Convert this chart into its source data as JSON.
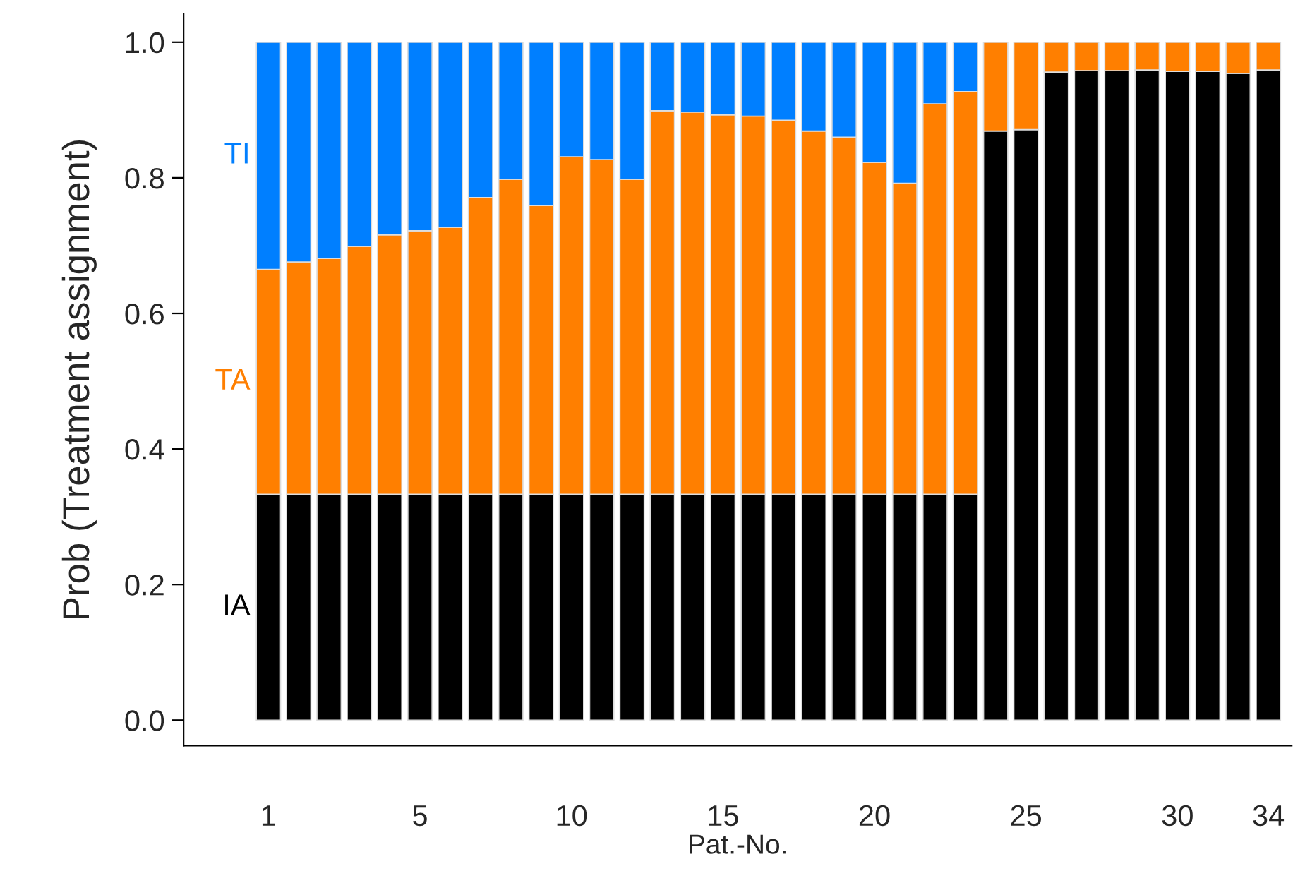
{
  "chart_data": {
    "type": "bar",
    "stacked": true,
    "xlabel": "Pat.-No.",
    "ylabel": "Prob (Treatment assignment)",
    "categories": [
      "1",
      null,
      null,
      null,
      null,
      "5",
      null,
      null,
      null,
      null,
      "10",
      null,
      null,
      null,
      null,
      "15",
      null,
      null,
      null,
      null,
      "20",
      null,
      null,
      null,
      null,
      "25",
      null,
      null,
      null,
      null,
      "30",
      null,
      null,
      "34"
    ],
    "series": [
      {
        "name": "IA",
        "color": "#000000",
        "values": [
          0.333,
          0.333,
          0.333,
          0.333,
          0.333,
          0.333,
          0.333,
          0.333,
          0.333,
          0.333,
          0.333,
          0.333,
          0.333,
          0.333,
          0.333,
          0.333,
          0.333,
          0.333,
          0.333,
          0.333,
          0.333,
          0.333,
          0.333,
          0.333,
          0.869,
          0.871,
          0.956,
          0.958,
          0.958,
          0.959,
          0.957,
          0.957,
          0.954,
          0.959
        ]
      },
      {
        "name": "TA",
        "color": "#ff7f00",
        "values": [
          0.332,
          0.343,
          0.348,
          0.366,
          0.383,
          0.389,
          0.394,
          0.438,
          0.465,
          0.426,
          0.498,
          0.494,
          0.465,
          0.566,
          0.564,
          0.56,
          0.558,
          0.552,
          0.536,
          0.527,
          0.49,
          0.459,
          0.576,
          0.594,
          0.131,
          0.129,
          0.044,
          0.042,
          0.042,
          0.041,
          0.043,
          0.043,
          0.046,
          0.041
        ]
      },
      {
        "name": "TI",
        "color": "#007fff",
        "values": [
          0.335,
          0.324,
          0.319,
          0.301,
          0.284,
          0.278,
          0.273,
          0.229,
          0.202,
          0.241,
          0.169,
          0.173,
          0.202,
          0.101,
          0.103,
          0.107,
          0.109,
          0.115,
          0.131,
          0.14,
          0.177,
          0.208,
          0.091,
          0.073,
          null,
          null,
          null,
          null,
          null,
          null,
          null,
          null,
          null,
          null
        ]
      }
    ],
    "ylim": [
      -0.0375,
      1.0417
    ],
    "yticks": [
      {
        "value": 0,
        "label": "0.0"
      },
      {
        "value": 0.2,
        "label": "0.2"
      },
      {
        "value": 0.4,
        "label": "0.4"
      },
      {
        "value": 0.6,
        "label": "0.6"
      },
      {
        "value": 0.8,
        "label": "0.8"
      },
      {
        "value": 1,
        "label": "1.0"
      }
    ],
    "grid": false,
    "legend": false
  }
}
